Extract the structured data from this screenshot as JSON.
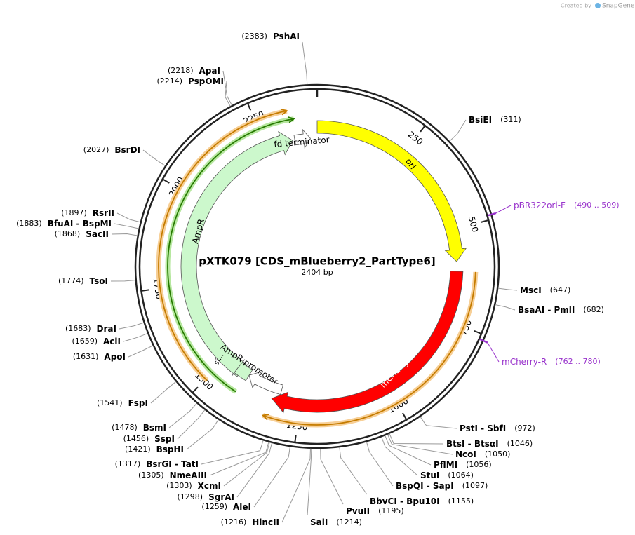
{
  "header": {
    "created_by": "Created by",
    "brand": "SnapGene"
  },
  "plasmid": {
    "name": "pXTK079 [CDS_mBlueberry2_PartType6]",
    "length": "2404 bp"
  },
  "ruler": [
    250,
    500,
    750,
    1000,
    1250,
    1500,
    1750,
    2000,
    2250
  ],
  "features": [
    {
      "label": "ori"
    },
    {
      "label": "mCherry2"
    },
    {
      "label": "AmpR"
    },
    {
      "label": "fd terminator"
    },
    {
      "label": "AmpR promoter"
    },
    {
      "label": "si..."
    }
  ],
  "primers": [
    {
      "name": "pBR322ori-F",
      "site": "(490 .. 509)"
    },
    {
      "name": "mCherry-R",
      "site": "(762 .. 780)"
    }
  ],
  "enzymes": [
    {
      "name": "PshAI",
      "site": "(2383)"
    },
    {
      "name": "ApaI",
      "site": "(2218)"
    },
    {
      "name": "PspOMI",
      "site": "(2214)"
    },
    {
      "name": "BsrDI",
      "site": "(2027)"
    },
    {
      "name": "RsrII",
      "site": "(1897)"
    },
    {
      "name": "BfuAI - BspMI",
      "site": "(1883)"
    },
    {
      "name": "SacII",
      "site": "(1868)"
    },
    {
      "name": "TsoI",
      "site": "(1774)"
    },
    {
      "name": "DraI",
      "site": "(1683)"
    },
    {
      "name": "AclI",
      "site": "(1659)"
    },
    {
      "name": "ApoI",
      "site": "(1631)"
    },
    {
      "name": "FspI",
      "site": "(1541)"
    },
    {
      "name": "BsmI",
      "site": "(1478)"
    },
    {
      "name": "SspI",
      "site": "(1456)"
    },
    {
      "name": "BspHI",
      "site": "(1421)"
    },
    {
      "name": "BsrGI - TatI",
      "site": "(1317)"
    },
    {
      "name": "NmeAIII",
      "site": "(1305)"
    },
    {
      "name": "XcmI",
      "site": "(1303)"
    },
    {
      "name": "SgrAI",
      "site": "(1298)"
    },
    {
      "name": "AleI",
      "site": "(1259)"
    },
    {
      "name": "HincII",
      "site": "(1216)"
    },
    {
      "name": "SalI",
      "site": "(1214)"
    },
    {
      "name": "PvuII",
      "site": "(1195)"
    },
    {
      "name": "BbvCI - Bpu10I",
      "site": "(1155)"
    },
    {
      "name": "BspQI - SapI",
      "site": "(1097)"
    },
    {
      "name": "StuI",
      "site": "(1064)"
    },
    {
      "name": "PflMI",
      "site": "(1056)"
    },
    {
      "name": "NcoI",
      "site": "(1050)"
    },
    {
      "name": "BtsI - BtsαI",
      "site": "(1046)"
    },
    {
      "name": "PstI - SbfI",
      "site": "(972)"
    },
    {
      "name": "BsaAI - PmlI",
      "site": "(682)"
    },
    {
      "name": "MscI",
      "site": "(647)"
    },
    {
      "name": "BsiEI",
      "site": "(311)"
    }
  ]
}
